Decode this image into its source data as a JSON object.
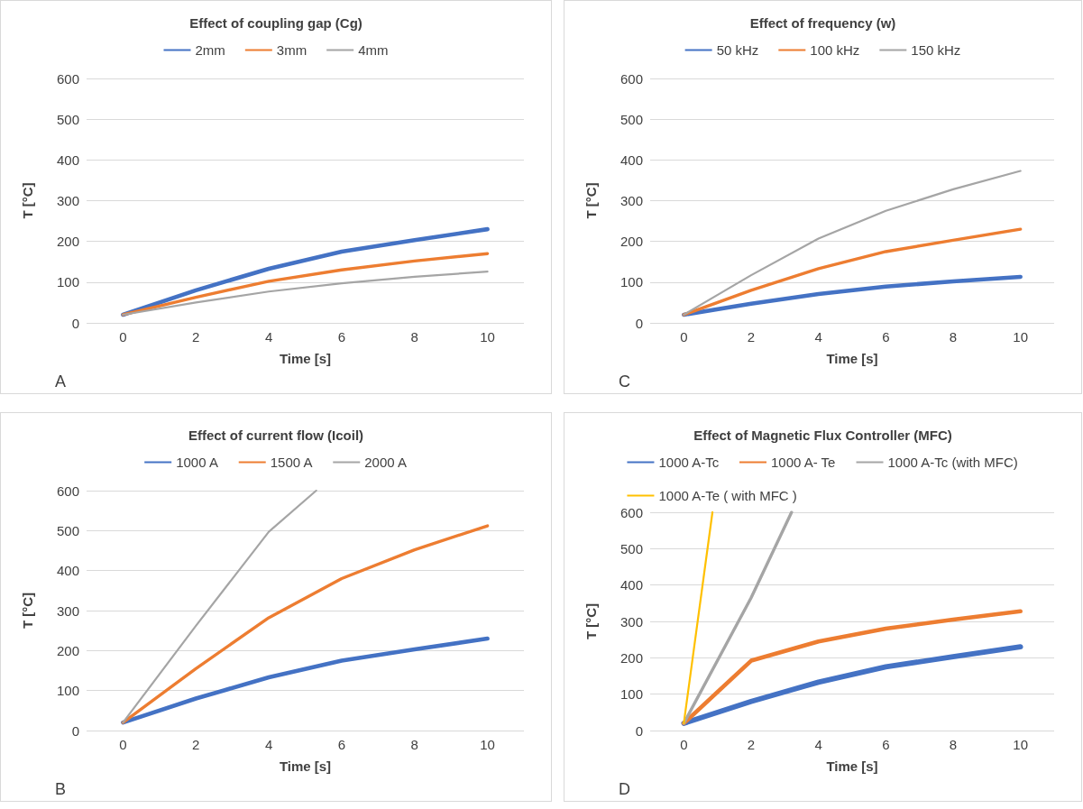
{
  "chart_data": [
    {
      "type": "line",
      "title": "Effect of coupling gap (Cg)",
      "xlabel": "Time [s]",
      "ylabel": "T [°C]",
      "x": [
        0,
        2,
        4,
        6,
        8,
        10
      ],
      "xlim": [
        -1,
        11
      ],
      "xticks": [
        0,
        2,
        4,
        6,
        8,
        10
      ],
      "ylim": [
        0,
        600
      ],
      "yticks": [
        0,
        100,
        200,
        300,
        400,
        500,
        600
      ],
      "grid": "y",
      "legend": "top",
      "annotations": [
        "A"
      ],
      "series": [
        {
          "name": "2mm",
          "color": "#4472c4",
          "values": [
            20,
            80,
            133,
            175,
            203,
            230
          ]
        },
        {
          "name": "3mm",
          "color": "#ed7d31",
          "values": [
            20,
            63,
            102,
            130,
            152,
            170
          ]
        },
        {
          "name": "4mm",
          "color": "#a5a5a5",
          "values": [
            20,
            50,
            77,
            97,
            113,
            126
          ]
        }
      ]
    },
    {
      "type": "line",
      "title": "Effect of frequency (w)",
      "xlabel": "Time [s]",
      "ylabel": "T [°C]",
      "x": [
        0,
        2,
        4,
        6,
        8,
        10
      ],
      "xlim": [
        -1,
        11
      ],
      "xticks": [
        0,
        2,
        4,
        6,
        8,
        10
      ],
      "ylim": [
        0,
        600
      ],
      "yticks": [
        0,
        100,
        200,
        300,
        400,
        500,
        600
      ],
      "grid": "y",
      "legend": "top",
      "annotations": [
        "C"
      ],
      "series": [
        {
          "name": "50 kHz",
          "color": "#4472c4",
          "values": [
            20,
            47,
            71,
            89,
            102,
            113
          ]
        },
        {
          "name": "100 kHz",
          "color": "#ed7d31",
          "values": [
            20,
            80,
            133,
            175,
            203,
            230
          ]
        },
        {
          "name": "150 kHz",
          "color": "#a5a5a5",
          "values": [
            20,
            117,
            207,
            275,
            328,
            373
          ]
        }
      ]
    },
    {
      "type": "line",
      "title": "Effect of current flow (Icoil)",
      "xlabel": "Time [s]",
      "ylabel": "T [°C]",
      "x": [
        0,
        2,
        4,
        6,
        8,
        10
      ],
      "xlim": [
        -1,
        11
      ],
      "xticks": [
        0,
        2,
        4,
        6,
        8,
        10
      ],
      "ylim": [
        0,
        600
      ],
      "yticks": [
        0,
        100,
        200,
        300,
        400,
        500,
        600
      ],
      "grid": "y",
      "legend": "top",
      "annotations": [
        "B"
      ],
      "series": [
        {
          "name": "1000 A",
          "color": "#4472c4",
          "values": [
            20,
            80,
            133,
            175,
            203,
            230
          ]
        },
        {
          "name": "1500 A",
          "color": "#ed7d31",
          "values": [
            20,
            155,
            282,
            380,
            452,
            512
          ]
        },
        {
          "name": "2000 A",
          "color": "#a5a5a5",
          "x": [
            0,
            2,
            4,
            5.3
          ],
          "values": [
            20,
            262,
            497,
            600
          ]
        }
      ]
    },
    {
      "type": "line",
      "title": "Effect of Magnetic Flux Controller (MFC)",
      "xlabel": "Time [s]",
      "ylabel": "T [°C]",
      "x": [
        0,
        2,
        4,
        6,
        8,
        10
      ],
      "xlim": [
        -1,
        11
      ],
      "xticks": [
        0,
        2,
        4,
        6,
        8,
        10
      ],
      "ylim": [
        0,
        600
      ],
      "yticks": [
        0,
        100,
        200,
        300,
        400,
        500,
        600
      ],
      "grid": "y",
      "legend": "top",
      "annotations": [
        "D"
      ],
      "series": [
        {
          "name": "1000 A-Tc",
          "color": "#4472c4",
          "values": [
            20,
            80,
            133,
            175,
            203,
            230
          ]
        },
        {
          "name": "1000 A- Te",
          "color": "#ed7d31",
          "values": [
            20,
            192,
            245,
            280,
            305,
            328
          ]
        },
        {
          "name": "1000 A-Tc (with MFC)",
          "color": "#a5a5a5",
          "x": [
            0,
            2,
            3.2
          ],
          "values": [
            20,
            365,
            600
          ]
        },
        {
          "name": "1000 A-Te ( with MFC )",
          "color": "#ffc000",
          "x": [
            0,
            0.85
          ],
          "values": [
            20,
            600
          ]
        }
      ]
    }
  ]
}
